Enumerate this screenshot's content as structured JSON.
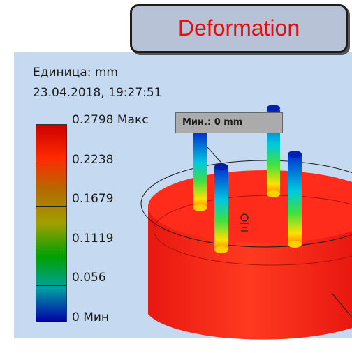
{
  "title": "Deformation",
  "unit_label": "Единица: mm",
  "timestamp": "23.04.2018, 19:27:51",
  "legend": {
    "levels": [
      {
        "text": "0.2798 Макс",
        "value": 0.2798
      },
      {
        "text": "0.2238",
        "value": 0.2238
      },
      {
        "text": "0.1679",
        "value": 0.1679
      },
      {
        "text": "0.1119",
        "value": 0.1119
      },
      {
        "text": "0.056",
        "value": 0.056
      },
      {
        "text": "0 Мин",
        "value": 0
      }
    ],
    "colors": [
      "#cc0000",
      "#ff2a00",
      "#b46a00",
      "#a0a000",
      "#00a000",
      "#00a0a0",
      "#0000aa"
    ]
  },
  "min_marker": "Мин.: 0 mm",
  "colors": {
    "viewport_bg": "#c5daf1",
    "title_text": "#e01010",
    "title_bg": "#b7c2d7",
    "body_red": "#ff2a1a"
  }
}
